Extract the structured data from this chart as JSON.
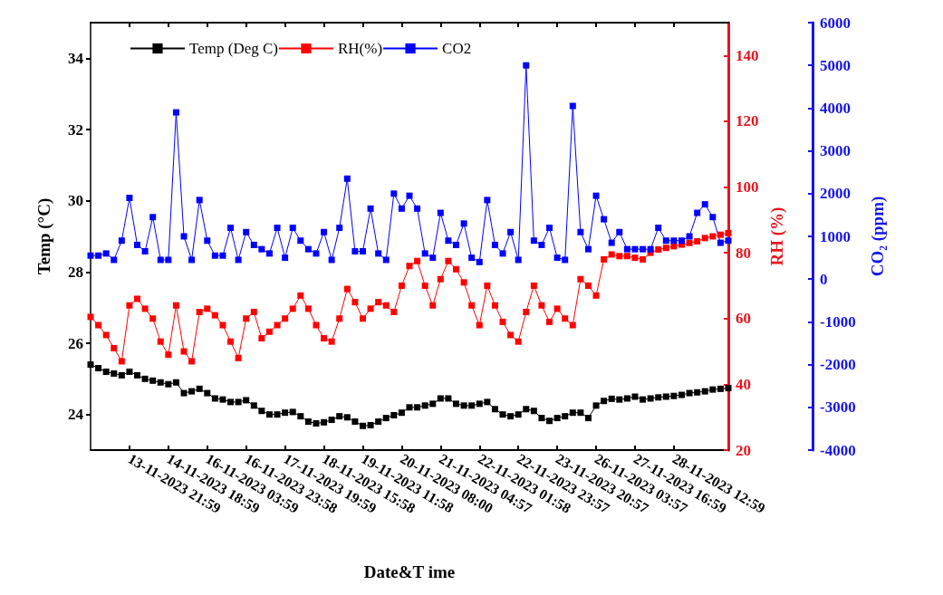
{
  "chart_data": {
    "type": "line",
    "xlabel": "Date&T ime",
    "ylabel": "Temp (°C)",
    "y2label": "RH (%)",
    "y3label": "CO₂ (ppm)",
    "categories": [
      null,
      null,
      null,
      null,
      null,
      "13-11-2023 21:59",
      null,
      null,
      null,
      null,
      "14-11-2023 18:59",
      null,
      null,
      null,
      null,
      "16-11-2023 03:59",
      null,
      null,
      null,
      null,
      "16-11-2023 23:58",
      null,
      null,
      null,
      null,
      "17-11-2023 19:59",
      null,
      null,
      null,
      null,
      "18-11-2023 15:58",
      null,
      null,
      null,
      null,
      "19-11-2023 11:58",
      null,
      null,
      null,
      null,
      "20-11-2023 08:00",
      null,
      null,
      null,
      null,
      "21-11-2023 04:57",
      null,
      null,
      null,
      null,
      "22-11-2023 01:58",
      null,
      null,
      null,
      null,
      "22-11-2023 23:57",
      null,
      null,
      null,
      null,
      "23-11-2023 20:57",
      null,
      null,
      null,
      null,
      "26-11-2023 03:57",
      null,
      null,
      null,
      null,
      "27-11-2023 16:59",
      null,
      null,
      null,
      null,
      "28-11-2023 12:59",
      null,
      null,
      null,
      null,
      null,
      null,
      null
    ],
    "series": [
      {
        "name": "Temp (Deg C)",
        "color": "#000000",
        "axis": "y",
        "values": [
          25.4,
          25.3,
          25.2,
          25.15,
          25.1,
          25.2,
          25.1,
          25.0,
          24.95,
          24.9,
          24.85,
          24.9,
          24.6,
          24.65,
          24.72,
          24.6,
          24.45,
          24.42,
          24.35,
          24.35,
          24.4,
          24.25,
          24.1,
          24.0,
          24.0,
          24.05,
          24.07,
          23.95,
          23.8,
          23.75,
          23.78,
          23.85,
          23.95,
          23.92,
          23.8,
          23.68,
          23.7,
          23.8,
          23.9,
          23.98,
          24.05,
          24.2,
          24.2,
          24.25,
          24.3,
          24.45,
          24.45,
          24.3,
          24.25,
          24.25,
          24.3,
          24.35,
          24.15,
          24.0,
          23.95,
          24.0,
          24.15,
          24.1,
          23.9,
          23.82,
          23.9,
          23.95,
          24.05,
          24.05,
          23.9,
          24.25,
          24.38,
          24.44,
          24.42,
          24.45,
          24.5,
          24.42,
          24.45,
          24.48,
          24.5,
          24.52,
          24.55,
          24.6,
          24.62,
          24.65,
          24.7,
          24.72,
          24.74
        ]
      },
      {
        "name": "RH(%)",
        "color": "#ff0000",
        "axis": "y2",
        "values": [
          60.5,
          58,
          55,
          51,
          47,
          64,
          66,
          63,
          60,
          53,
          49,
          64,
          50,
          47,
          62,
          63,
          61,
          58,
          53,
          48,
          60,
          62,
          54,
          56,
          58,
          60,
          63,
          67,
          63,
          58,
          54,
          53,
          60,
          69,
          65,
          60,
          63,
          65,
          64,
          62,
          70,
          76,
          77.5,
          70,
          64,
          72,
          77.5,
          75,
          71,
          64,
          58,
          70,
          64,
          59,
          55,
          53,
          62,
          70,
          64,
          59,
          63,
          60,
          58,
          72,
          70,
          67,
          78,
          79.5,
          79,
          79,
          78.5,
          78,
          80,
          81,
          81.5,
          82,
          82.5,
          83,
          83.5,
          84.5,
          85,
          85.5,
          86
        ]
      },
      {
        "name": "CO2",
        "color": "#0000ff",
        "axis": "y3",
        "values": [
          550,
          550,
          600,
          450,
          900,
          1900,
          800,
          650,
          1450,
          450,
          450,
          3900,
          1000,
          450,
          1850,
          900,
          550,
          550,
          1200,
          450,
          1100,
          800,
          700,
          600,
          1200,
          500,
          1200,
          900,
          700,
          600,
          1100,
          450,
          1200,
          2350,
          650,
          650,
          1650,
          600,
          450,
          2000,
          1650,
          1950,
          1650,
          600,
          500,
          1550,
          900,
          800,
          1300,
          500,
          400,
          1850,
          800,
          600,
          1100,
          450,
          5000,
          900,
          800,
          1200,
          500,
          450,
          4050,
          1100,
          700,
          1950,
          1400,
          850,
          1100,
          700,
          700,
          700,
          700,
          1200,
          900,
          900,
          900,
          1000,
          1550,
          1750,
          1450,
          850,
          900
        ]
      }
    ],
    "ylim": [
      23,
      35
    ],
    "yticks": [
      24,
      26,
      28,
      30,
      32,
      34
    ],
    "y2lim": [
      20,
      150
    ],
    "y2ticks": [
      20,
      40,
      60,
      80,
      100,
      120,
      140
    ],
    "y3lim": [
      -4000,
      6000
    ],
    "y3ticks": [
      -4000,
      -3000,
      -2000,
      -1000,
      0,
      1000,
      2000,
      3000,
      4000,
      5000,
      6000
    ],
    "marker": "square",
    "line_style": "solid",
    "grid": false,
    "legend": "top left"
  }
}
